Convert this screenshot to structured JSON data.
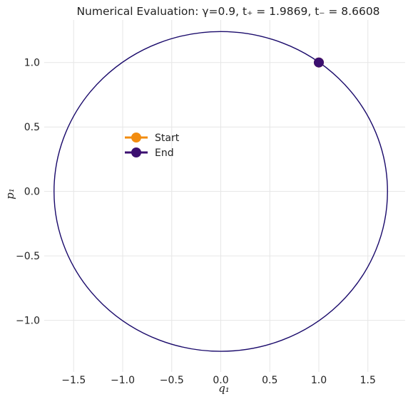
{
  "chart_data": {
    "type": "line",
    "title": "Numerical Evaluation: γ=0.9, t₊ = 1.9869, t₋ = 8.6608",
    "xlabel": "q₁",
    "ylabel": "p₁",
    "xlim": [
      -1.8,
      1.88
    ],
    "ylim": [
      -1.4,
      1.33
    ],
    "xticks": [
      -1.5,
      -1.0,
      -0.5,
      0.0,
      0.5,
      1.0,
      1.5
    ],
    "xtick_labels": [
      "−1.5",
      "−1.0",
      "−0.5",
      "0.0",
      "0.5",
      "1.0",
      "1.5"
    ],
    "yticks": [
      -1.0,
      -0.5,
      0.0,
      0.5,
      1.0
    ],
    "ytick_labels": [
      "−1.0",
      "−0.5",
      "0.0",
      "0.5",
      "1.0"
    ],
    "grid": true,
    "legend": "upper-left",
    "series": [
      {
        "kind": "trajectory",
        "shape": "ellipse",
        "center": [
          0.0,
          0.0
        ],
        "semi_axis_q": 1.7,
        "semi_axis_p": 1.24,
        "color": "#1a0a6b"
      },
      {
        "name": "Start",
        "kind": "marker",
        "x": 1.0,
        "y": 1.0,
        "color": "#f28c0f"
      },
      {
        "name": "End",
        "kind": "marker",
        "x": 1.0,
        "y": 1.0,
        "color": "#3b0f70"
      }
    ]
  }
}
